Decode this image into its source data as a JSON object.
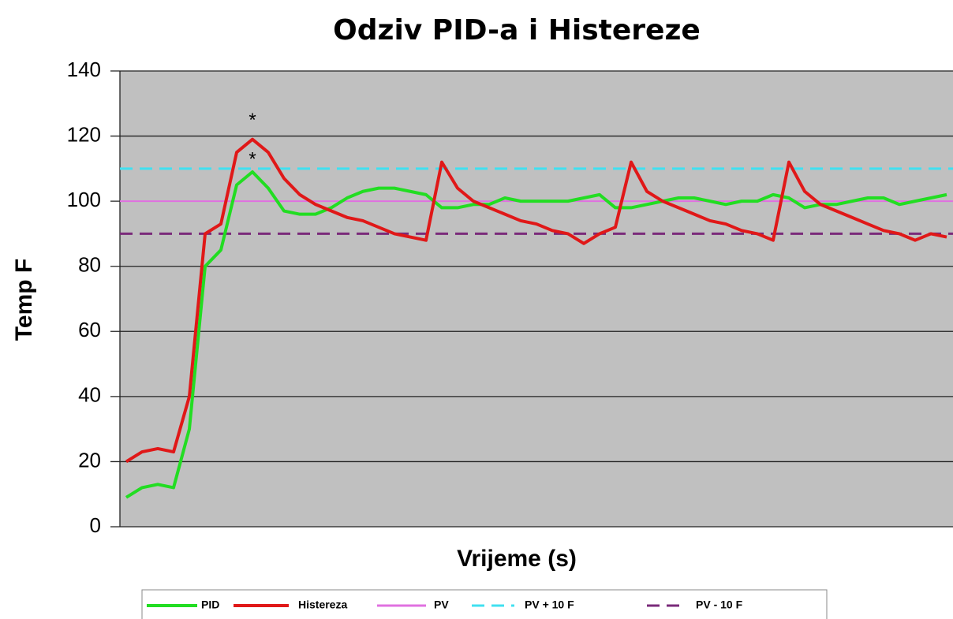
{
  "chart_data": {
    "type": "line",
    "title": "Odziv PID-a i Histereze",
    "x_label": "Vrijeme (s)",
    "y_label": "Temp F",
    "categories": [
      null,
      null,
      null,
      null,
      null,
      null,
      null,
      null,
      null,
      null,
      null,
      null,
      null,
      null,
      null,
      null,
      null,
      null,
      null,
      null,
      null,
      null,
      null,
      null,
      null,
      null,
      null,
      null,
      null,
      null,
      null,
      null,
      null,
      null,
      null,
      null,
      null,
      null,
      null,
      null,
      null,
      null,
      null,
      null,
      null,
      null,
      null,
      null,
      null,
      null,
      null,
      null,
      null
    ],
    "series": [
      {
        "name": "PID",
        "color": "#22dd22",
        "values": [
          9,
          12,
          13,
          12,
          30,
          80,
          85,
          105,
          109,
          104,
          97,
          96,
          96,
          98,
          101,
          103,
          104,
          104,
          103,
          102,
          98,
          98,
          99,
          99,
          101,
          100,
          100,
          100,
          100,
          101,
          102,
          98,
          98,
          99,
          100,
          101,
          101,
          100,
          99,
          100,
          100,
          102,
          101,
          98,
          99,
          99,
          100,
          101,
          101,
          99,
          100,
          101,
          102
        ]
      },
      {
        "name": "Histereza",
        "color": "#e01818",
        "values": [
          20,
          23,
          24,
          23,
          40,
          90,
          93,
          115,
          119,
          115,
          107,
          102,
          99,
          97,
          95,
          94,
          92,
          90,
          89,
          88,
          112,
          104,
          100,
          98,
          96,
          94,
          93,
          91,
          90,
          87,
          90,
          92,
          112,
          103,
          100,
          98,
          96,
          94,
          93,
          91,
          90,
          88,
          112,
          103,
          99,
          97,
          95,
          93,
          91,
          90,
          88,
          90,
          89
        ]
      }
    ],
    "hlines": [
      {
        "name": "PV",
        "value": 100,
        "color": "#e070e0",
        "dashed": false
      },
      {
        "name": "PV + 10  F",
        "value": 110,
        "color": "#40e0f0",
        "dashed": true
      },
      {
        "name": "PV - 10 F",
        "value": 90,
        "color": "#7a2a7a",
        "dashed": true
      }
    ],
    "annotations": [
      {
        "text": "*",
        "index": 8,
        "y": 126,
        "color": "#e01818"
      },
      {
        "text": "*",
        "index": 8,
        "y": 114,
        "color": "#22dd22"
      }
    ],
    "ylim": [
      0,
      140
    ],
    "yticks": [
      0,
      20,
      40,
      60,
      80,
      100,
      120,
      140
    ],
    "grid": true,
    "legend": "bottom"
  }
}
